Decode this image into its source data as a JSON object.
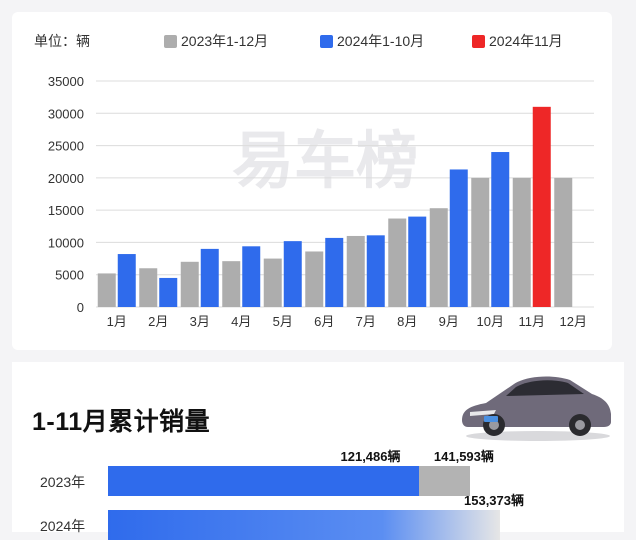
{
  "chart_data": {
    "type": "bar",
    "unit_label": "单位：辆",
    "categories": [
      "1月",
      "2月",
      "3月",
      "4月",
      "5月",
      "6月",
      "7月",
      "8月",
      "9月",
      "10月",
      "11月",
      "12月"
    ],
    "series": [
      {
        "name": "2023年1-12月",
        "color": "#adadad",
        "values": [
          5200,
          6000,
          7000,
          7100,
          7500,
          8600,
          11000,
          13700,
          15300,
          20000,
          20000,
          20000
        ]
      },
      {
        "name": "2024年1-10月",
        "color": "#2f6bec",
        "values": [
          8200,
          4500,
          9000,
          9400,
          10200,
          10700,
          11100,
          14000,
          21300,
          24000,
          null,
          null
        ]
      },
      {
        "name": "2024年11月",
        "color": "#ee2727",
        "values": [
          null,
          null,
          null,
          null,
          null,
          null,
          null,
          null,
          null,
          null,
          31000,
          null
        ]
      }
    ],
    "yticks": [
      0,
      5000,
      10000,
      15000,
      20000,
      25000,
      30000,
      35000
    ],
    "ylim": [
      0,
      35000
    ],
    "grid": true,
    "legend": "top",
    "watermark": "易车榜"
  },
  "cumulative": {
    "title": "1-11月累计销量",
    "rows": [
      {
        "year": "2023年",
        "partial_value": 121486,
        "partial_label": "121,486辆",
        "total_value": 141593,
        "total_label": "141,593辆"
      },
      {
        "year": "2024年",
        "partial_value": null,
        "partial_label": "",
        "total_value": 153373,
        "total_label": "153,373辆"
      }
    ]
  }
}
